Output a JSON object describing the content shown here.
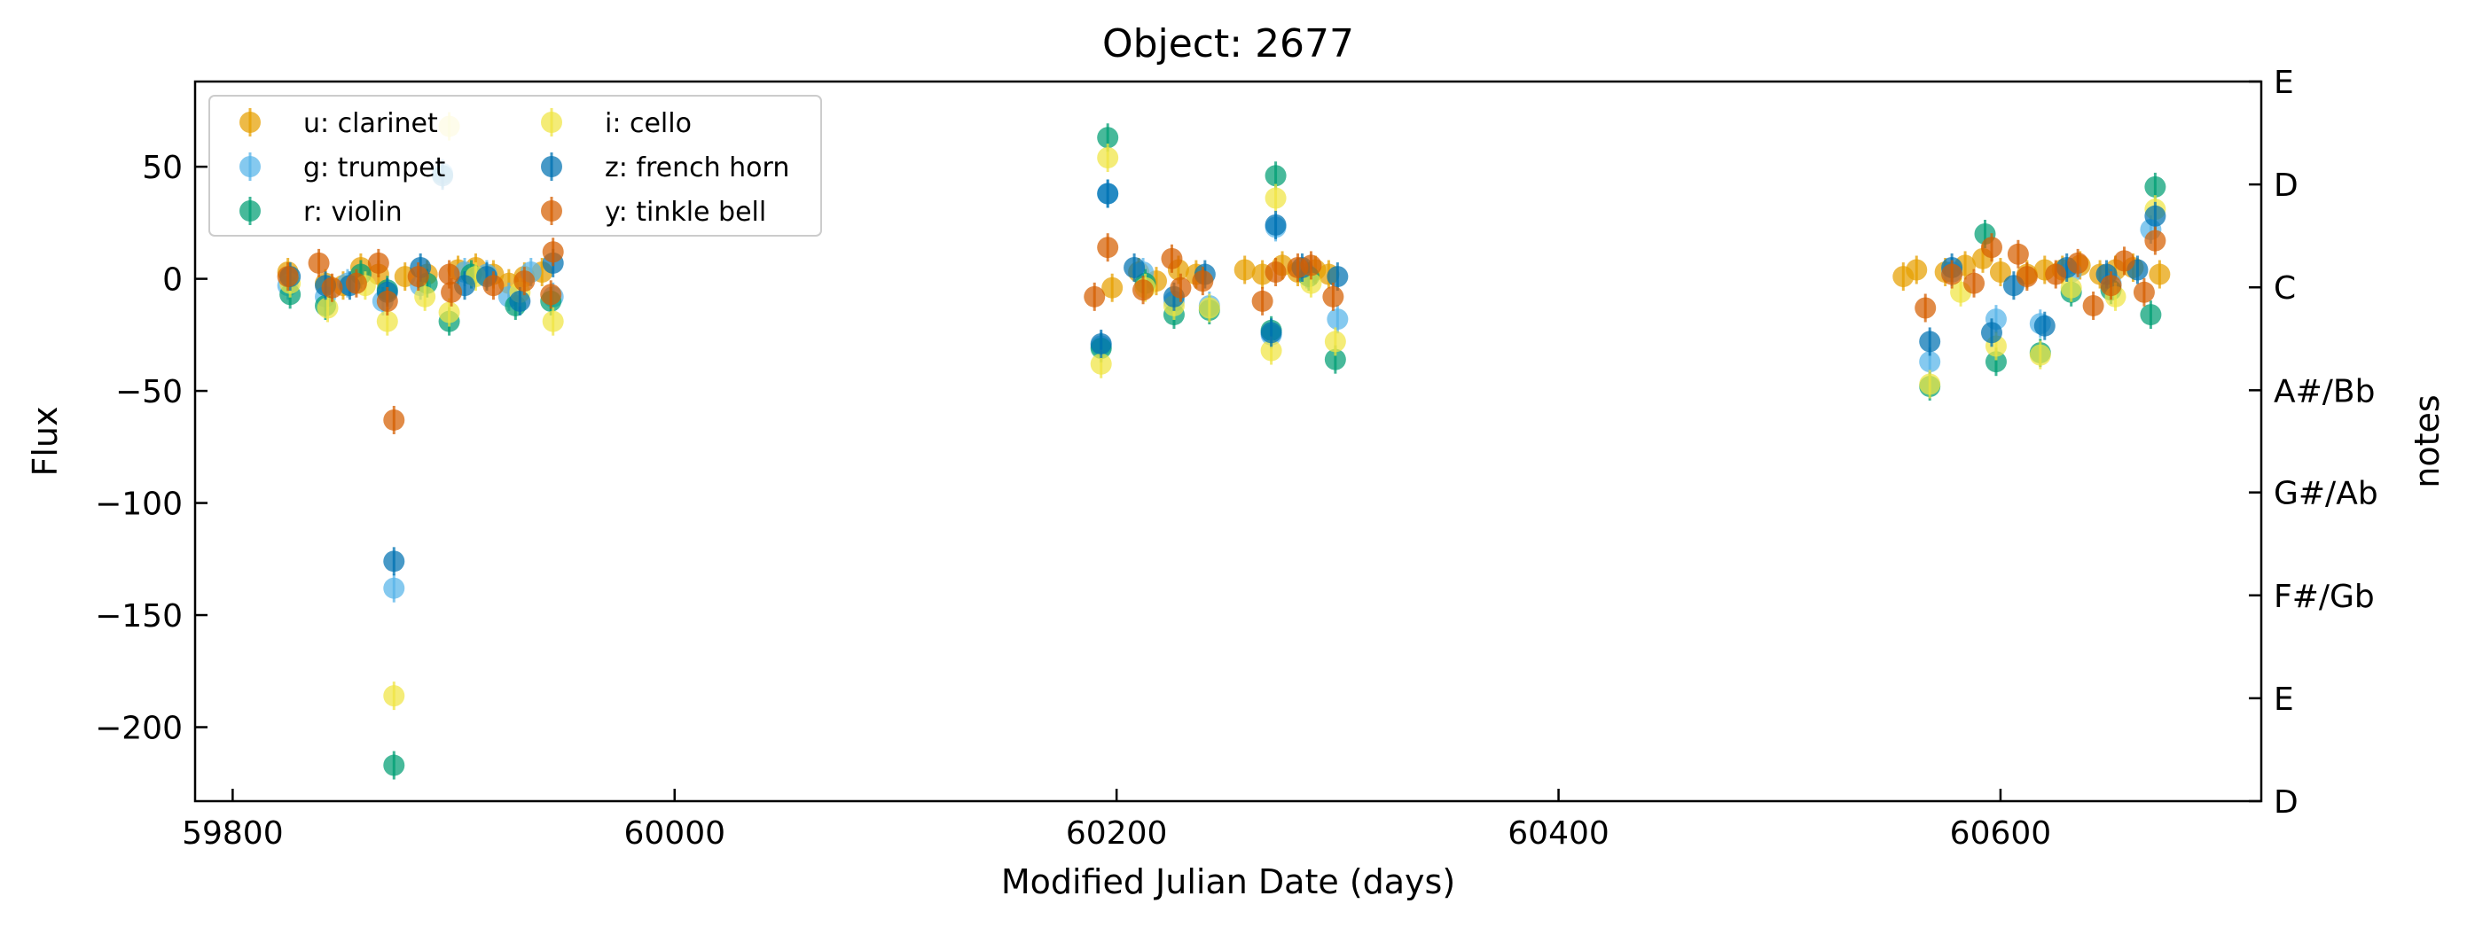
{
  "chart_data": {
    "type": "scatter",
    "title": "Object: 2677",
    "xlabel": "Modified Julian Date (days)",
    "ylabel": "Flux",
    "y2label": "notes",
    "xlim": [
      59783,
      60718
    ],
    "ylim": [
      -233,
      88
    ],
    "x_ticks": [
      59800,
      60000,
      60200,
      60400,
      60600
    ],
    "y_ticks": [
      50,
      0,
      -50,
      -100,
      -150,
      -200
    ],
    "x_tick_labels": [
      "59800",
      "60000",
      "60200",
      "60400",
      "60600"
    ],
    "y_tick_labels": [
      "50",
      "0",
      "−50",
      "−100",
      "−150",
      "−200"
    ],
    "y2_ticks": [
      {
        "label": "E",
        "frac": 1.0
      },
      {
        "label": "D",
        "frac": 0.857
      },
      {
        "label": "C",
        "frac": 0.714
      },
      {
        "label": "A#/Bb",
        "frac": 0.571
      },
      {
        "label": "G#/Ab",
        "frac": 0.429
      },
      {
        "label": "F#/Gb",
        "frac": 0.286
      },
      {
        "label": "E",
        "frac": 0.143
      },
      {
        "label": "D",
        "frac": 0.0
      }
    ],
    "grid": false,
    "legend_position": "top-left",
    "legend_columns": 2,
    "series": [
      {
        "name": "u: clarinet",
        "color": "#E69F00",
        "points": [
          [
            59825,
            3
          ],
          [
            59842,
            -2
          ],
          [
            59850,
            -3
          ],
          [
            59858,
            5
          ],
          [
            59866,
            2
          ],
          [
            59878,
            1
          ],
          [
            59888,
            2
          ],
          [
            59902,
            4
          ],
          [
            59910,
            5
          ],
          [
            59918,
            2
          ],
          [
            59925,
            -2
          ],
          [
            59932,
            1
          ],
          [
            59940,
            3
          ],
          [
            60198,
            -4
          ],
          [
            60210,
            3
          ],
          [
            60218,
            -1
          ],
          [
            60228,
            4
          ],
          [
            60236,
            2
          ],
          [
            60258,
            4
          ],
          [
            60266,
            2
          ],
          [
            60275,
            6
          ],
          [
            60282,
            3
          ],
          [
            60290,
            4
          ],
          [
            60296,
            2
          ],
          [
            60556,
            1
          ],
          [
            60562,
            4
          ],
          [
            60575,
            3
          ],
          [
            60584,
            6
          ],
          [
            60592,
            9
          ],
          [
            60600,
            3
          ],
          [
            60612,
            2
          ],
          [
            60620,
            4
          ],
          [
            60628,
            4
          ],
          [
            60636,
            6
          ],
          [
            60645,
            2
          ],
          [
            60652,
            4
          ],
          [
            60660,
            5
          ],
          [
            60672,
            2
          ]
        ]
      },
      {
        "name": "g: trumpet",
        "color": "#56B4E9",
        "points": [
          [
            59825,
            -3
          ],
          [
            59842,
            -8
          ],
          [
            59852,
            -2
          ],
          [
            59868,
            -10
          ],
          [
            59873,
            -138
          ],
          [
            59885,
            -3
          ],
          [
            59895,
            47
          ],
          [
            59905,
            3
          ],
          [
            59915,
            2
          ],
          [
            59925,
            -8
          ],
          [
            59935,
            3
          ],
          [
            59945,
            -8
          ],
          [
            60193,
            -30
          ],
          [
            60196,
            38
          ],
          [
            60212,
            3
          ],
          [
            60226,
            -10
          ],
          [
            60242,
            -12
          ],
          [
            60270,
            -25
          ],
          [
            60272,
            23
          ],
          [
            60286,
            2
          ],
          [
            60300,
            -18
          ],
          [
            60568,
            -37
          ],
          [
            60578,
            3
          ],
          [
            60598,
            -18
          ],
          [
            60618,
            -20
          ],
          [
            60632,
            3
          ],
          [
            60650,
            -2
          ],
          [
            60668,
            22
          ]
        ]
      },
      {
        "name": "r: violin",
        "color": "#009E73",
        "points": [
          [
            59826,
            -7
          ],
          [
            59842,
            -12
          ],
          [
            59858,
            2
          ],
          [
            59870,
            -5
          ],
          [
            59873,
            -217
          ],
          [
            59888,
            -2
          ],
          [
            59898,
            -19
          ],
          [
            59908,
            2
          ],
          [
            59928,
            -12
          ],
          [
            59944,
            -10
          ],
          [
            60193,
            -31
          ],
          [
            60196,
            63
          ],
          [
            60213,
            -2
          ],
          [
            60226,
            -16
          ],
          [
            60242,
            -14
          ],
          [
            60270,
            -23
          ],
          [
            60272,
            46
          ],
          [
            60287,
            1
          ],
          [
            60299,
            -36
          ],
          [
            60568,
            -48
          ],
          [
            60593,
            20
          ],
          [
            60598,
            -37
          ],
          [
            60618,
            -33
          ],
          [
            60632,
            -6
          ],
          [
            60650,
            -5
          ],
          [
            60668,
            -16
          ],
          [
            60670,
            41
          ]
        ]
      },
      {
        "name": "i: cello",
        "color": "#F0E442",
        "points": [
          [
            59826,
            -2
          ],
          [
            59843,
            -13
          ],
          [
            59860,
            -3
          ],
          [
            59870,
            -19
          ],
          [
            59873,
            -186
          ],
          [
            59887,
            -8
          ],
          [
            59898,
            -15
          ],
          [
            59898,
            68
          ],
          [
            59910,
            1
          ],
          [
            59930,
            -6
          ],
          [
            59945,
            -19
          ],
          [
            60193,
            -38
          ],
          [
            60196,
            54
          ],
          [
            60213,
            -4
          ],
          [
            60226,
            -12
          ],
          [
            60242,
            -13
          ],
          [
            60270,
            -32
          ],
          [
            60272,
            36
          ],
          [
            60288,
            -2
          ],
          [
            60299,
            -28
          ],
          [
            60568,
            -47
          ],
          [
            60582,
            -6
          ],
          [
            60598,
            -30
          ],
          [
            60618,
            -34
          ],
          [
            60632,
            -4
          ],
          [
            60652,
            -8
          ],
          [
            60670,
            31
          ]
        ]
      },
      {
        "name": "z: french horn",
        "color": "#0072B2",
        "points": [
          [
            59826,
            1
          ],
          [
            59842,
            -3
          ],
          [
            59853,
            -3
          ],
          [
            59870,
            -6
          ],
          [
            59873,
            -126
          ],
          [
            59885,
            5
          ],
          [
            59895,
            46
          ],
          [
            59905,
            -3
          ],
          [
            59915,
            1
          ],
          [
            59930,
            -10
          ],
          [
            59945,
            7
          ],
          [
            60193,
            -29
          ],
          [
            60196,
            38
          ],
          [
            60208,
            5
          ],
          [
            60226,
            -8
          ],
          [
            60240,
            2
          ],
          [
            60270,
            -24
          ],
          [
            60272,
            24
          ],
          [
            60284,
            5
          ],
          [
            60300,
            1
          ],
          [
            60568,
            -28
          ],
          [
            60578,
            5
          ],
          [
            60596,
            -24
          ],
          [
            60606,
            -3
          ],
          [
            60620,
            -21
          ],
          [
            60630,
            5
          ],
          [
            60648,
            2
          ],
          [
            60662,
            4
          ],
          [
            60670,
            28
          ]
        ]
      },
      {
        "name": "y: tinkle bell",
        "color": "#D55E00",
        "points": [
          [
            59825,
            1
          ],
          [
            59839,
            7
          ],
          [
            59845,
            -4
          ],
          [
            59856,
            -2
          ],
          [
            59866,
            7
          ],
          [
            59870,
            -10
          ],
          [
            59873,
            -63
          ],
          [
            59884,
            1
          ],
          [
            59898,
            2
          ],
          [
            59899,
            -6
          ],
          [
            59918,
            -3
          ],
          [
            59932,
            -1
          ],
          [
            59944,
            -7
          ],
          [
            59945,
            12
          ],
          [
            60190,
            -8
          ],
          [
            60196,
            14
          ],
          [
            60212,
            -5
          ],
          [
            60225,
            9
          ],
          [
            60229,
            -4
          ],
          [
            60239,
            -1
          ],
          [
            60266,
            -10
          ],
          [
            60272,
            3
          ],
          [
            60282,
            5
          ],
          [
            60288,
            6
          ],
          [
            60298,
            -8
          ],
          [
            60566,
            -13
          ],
          [
            60578,
            2
          ],
          [
            60588,
            -2
          ],
          [
            60596,
            14
          ],
          [
            60608,
            11
          ],
          [
            60612,
            1
          ],
          [
            60625,
            2
          ],
          [
            60635,
            7
          ],
          [
            60642,
            -12
          ],
          [
            60650,
            -3
          ],
          [
            60656,
            8
          ],
          [
            60665,
            -6
          ],
          [
            60670,
            17
          ]
        ]
      }
    ]
  }
}
